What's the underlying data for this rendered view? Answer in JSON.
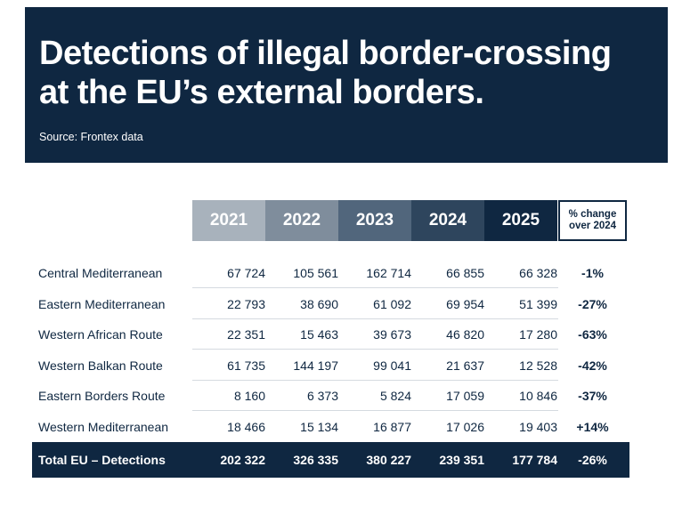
{
  "header": {
    "title_line1": "Detections of illegal border-crossing",
    "title_line2": "at the EU’s external borders.",
    "source": "Source: Frontex data"
  },
  "colors": {
    "navy": "#0f2741",
    "y2021": "#a8b2bc",
    "y2022": "#7f8d9c",
    "y2023": "#51667c",
    "y2024": "#2e455d",
    "y2025": "#0f2741"
  },
  "chart_data": {
    "type": "table",
    "columns": [
      "2021",
      "2022",
      "2023",
      "2024",
      "2025"
    ],
    "change_header_line1": "% change",
    "change_header_line2": "over 2024",
    "rows": [
      {
        "label": "Central Mediterranean",
        "values": [
          "67 724",
          "105 561",
          "162 714",
          "66 855",
          "66 328"
        ],
        "change": "-1%"
      },
      {
        "label": "Eastern Mediterranean",
        "values": [
          "22 793",
          "38 690",
          "61 092",
          "69 954",
          "51 399"
        ],
        "change": "-27%"
      },
      {
        "label": "Western African Route",
        "values": [
          "22 351",
          "15 463",
          "39 673",
          "46 820",
          "17 280"
        ],
        "change": "-63%"
      },
      {
        "label": "Western Balkan Route",
        "values": [
          "61 735",
          "144 197",
          "99 041",
          "21 637",
          "12 528"
        ],
        "change": "-42%"
      },
      {
        "label": "Eastern Borders Route",
        "values": [
          "8 160",
          "6 373",
          "5 824",
          "17 059",
          "10 846"
        ],
        "change": "-37%"
      },
      {
        "label": "Western Mediterranean",
        "values": [
          "18 466",
          "15 134",
          "16 877",
          "17 026",
          "19 403"
        ],
        "change": "+14%"
      }
    ],
    "total": {
      "label": "Total EU – Detections",
      "values": [
        "202 322",
        "326 335",
        "380 227",
        "239 351",
        "177 784"
      ],
      "change": "-26%"
    }
  }
}
